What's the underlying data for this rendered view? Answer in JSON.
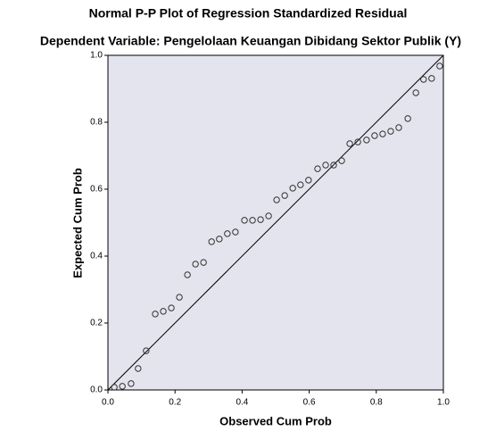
{
  "chart_data": {
    "type": "scatter",
    "title": "Normal P-P Plot of Regression Standardized Residual",
    "subtitle": "Dependent Variable: Pengelolaan Keuangan Dibidang Sektor Publik (Y)",
    "x_label": "Observed Cum Prob",
    "y_label": "Expected Cum Prob",
    "xlim": [
      0,
      1
    ],
    "ylim": [
      0,
      1
    ],
    "xticks": [
      {
        "value": 0,
        "label": "0.0"
      },
      0.2,
      0.4,
      0.6,
      0.8,
      {
        "value": 1,
        "label": "1.0"
      }
    ],
    "yticks": [
      {
        "value": 0,
        "label": "0.0"
      },
      0.2,
      0.4,
      0.6,
      0.8,
      {
        "value": 1,
        "label": "1.0"
      }
    ],
    "reference_line": true,
    "series": [
      {
        "color": "#333333",
        "x": [
          0.019,
          0.043,
          0.069,
          0.09,
          0.114,
          0.141,
          0.165,
          0.189,
          0.213,
          0.237,
          0.261,
          0.285,
          0.309,
          0.332,
          0.356,
          0.38,
          0.407,
          0.431,
          0.455,
          0.479,
          0.503,
          0.527,
          0.551,
          0.574,
          0.598,
          0.625,
          0.649,
          0.673,
          0.697,
          0.721,
          0.745,
          0.771,
          0.795,
          0.819,
          0.843,
          0.867,
          0.894,
          0.918,
          0.941,
          0.965,
          0.989
        ],
        "values": [
          0.008,
          0.011,
          0.019,
          0.064,
          0.117,
          0.227,
          0.235,
          0.245,
          0.277,
          0.344,
          0.376,
          0.381,
          0.443,
          0.451,
          0.467,
          0.472,
          0.507,
          0.507,
          0.509,
          0.52,
          0.568,
          0.581,
          0.603,
          0.613,
          0.627,
          0.661,
          0.672,
          0.672,
          0.685,
          0.736,
          0.741,
          0.747,
          0.76,
          0.765,
          0.773,
          0.784,
          0.811,
          0.888,
          0.928,
          0.931,
          0.968
        ]
      }
    ]
  }
}
